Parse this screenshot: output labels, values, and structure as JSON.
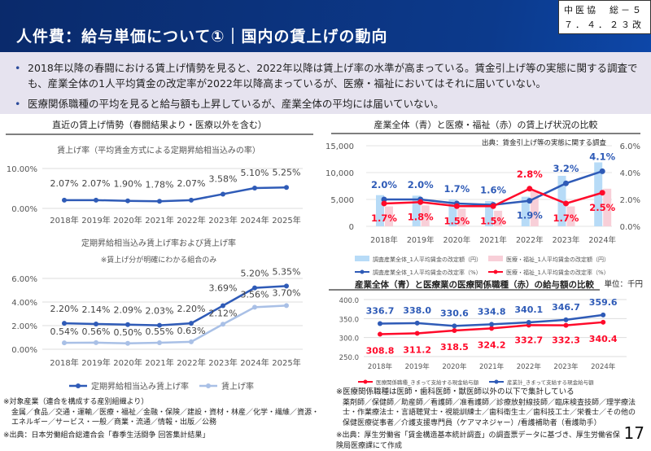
{
  "header": {
    "title": "人件費：給与単価について①｜国内の賃上げの動向",
    "doc_id_line1": "中医協　総－５",
    "doc_id_line2": "７．４．２３改"
  },
  "bullets": [
    "2018年以降の春闘における賃上げ情勢を見ると、2022年以降は賃上げ率の水準が高まっている。賃金引上げ等の実態に関する調査でも、産業全体の1人平均賃金の改定率が2022年以降高まっているが、医療・福祉においてはそれに届いていない。",
    "医療関係職種の平均を見ると給与額も上昇しているが、産業全体の平均には届いていない。"
  ],
  "left_section_title": "直近の賃上げ情勢（春闘結果より・医療以外を含む）",
  "right_section_title": "産業全体（青）と医療・福祉（赤）の賃上げ状況の比較",
  "chart_data": [
    {
      "type": "line",
      "title": "賃上げ率（平均賃金方式による定期昇給相当込みの率）",
      "categories": [
        "2018年",
        "2019年",
        "2020年",
        "2021年",
        "2022年",
        "2023年",
        "2024年",
        "2025年"
      ],
      "series": [
        {
          "values": [
            2.07,
            2.07,
            1.9,
            1.78,
            2.07,
            3.58,
            5.1,
            5.25
          ],
          "labels": [
            "2.07%",
            "2.07%",
            "1.90%",
            "1.78%",
            "2.07%",
            "3.58%",
            "5.10%",
            "5.25%"
          ],
          "color": "#2f5bb7"
        }
      ],
      "ylim": [
        0,
        10
      ],
      "yticks": [
        "0.00%",
        "10.00%"
      ],
      "grid": true
    },
    {
      "type": "line",
      "title": "定期昇給相当込み賃上げ率および賃上げ率",
      "subtitle": "※賃上げ分が明確にわかる組合のみ",
      "categories": [
        "2018年",
        "2019年",
        "2020年",
        "2021年",
        "2022年",
        "2023年",
        "2024年",
        "2025年"
      ],
      "series": [
        {
          "name": "定期昇給相当込み賃上げ率",
          "values": [
            2.2,
            2.14,
            2.09,
            2.03,
            2.2,
            3.69,
            5.2,
            5.35
          ],
          "labels": [
            "2.20%",
            "2.14%",
            "2.09%",
            "2.03%",
            "2.20%",
            "3.69%",
            "5.20%",
            "5.35%"
          ],
          "color": "#2f5bb7"
        },
        {
          "name": "賃上げ率",
          "values": [
            0.54,
            0.56,
            0.5,
            0.55,
            0.63,
            2.12,
            3.56,
            3.7
          ],
          "labels": [
            "0.54%",
            "0.56%",
            "0.50%",
            "0.55%",
            "0.63%",
            "2.12%",
            "3.56%",
            "3.70%"
          ],
          "color": "#a9c0e6"
        }
      ],
      "ylim": [
        0,
        6
      ],
      "yticks": [
        "0.00%",
        "2.00%",
        "4.00%",
        "6.00%"
      ],
      "grid": true,
      "legend": "bottom"
    },
    {
      "type": "bar+line",
      "source": "出典：賃金引上げ等の実態に関する調査",
      "categories": [
        "2018年",
        "2019年",
        "2020年",
        "2021年",
        "2022年",
        "2023年",
        "2024年"
      ],
      "bars": [
        {
          "name": "調査産業全体_1人平均賃金の改定額（円）",
          "values": [
            5800,
            5700,
            5000,
            4700,
            5500,
            9400,
            11900
          ],
          "color": "#b7dbf7"
        },
        {
          "name": "医療・福祉_1人平均賃金の改定額（円）",
          "values": [
            3700,
            3900,
            3300,
            2900,
            6600,
            3700,
            7000
          ],
          "color": "#f8cfd8"
        }
      ],
      "lines": [
        {
          "name": "調査産業全体_1人平均賃金の改定率（%）",
          "values": [
            2.0,
            2.0,
            1.7,
            1.6,
            1.9,
            3.2,
            4.1
          ],
          "labels": [
            "2.0%",
            "2.0%",
            "1.7%",
            "1.6%",
            "1.9%",
            "3.2%",
            "4.1%"
          ],
          "color": "#2f5bb7"
        },
        {
          "name": "医療・福祉_1人平均賃金の改定率（%）",
          "values": [
            1.7,
            1.8,
            1.5,
            1.5,
            2.8,
            1.7,
            2.5
          ],
          "labels": [
            "1.7%",
            "1.8%",
            "1.5%",
            "1.5%",
            "2.8%",
            "1.7%",
            "2.5%"
          ],
          "color": "#ff0a2a"
        }
      ],
      "ylim_left": [
        0,
        15000
      ],
      "yticks_left": [
        "0",
        "5,000",
        "10,000",
        "15,000"
      ],
      "ylim_right": [
        0,
        6
      ],
      "yticks_right": [
        "0.0%",
        "2.0%",
        "4.0%",
        "6.0%"
      ],
      "grid": true,
      "legend": "bottom"
    },
    {
      "type": "line",
      "title": "産業全体（青）と医療業の医療関係職種（赤）の給与額の比較",
      "unit": "単位：千円",
      "categories": [
        "2018年",
        "2019年",
        "2020年",
        "2021年",
        "2022年",
        "2023年",
        "2024年"
      ],
      "series": [
        {
          "name": "医療関係職種_きまって支給する現金給与額",
          "values": [
            308.8,
            311.2,
            318.5,
            324.2,
            332.7,
            332.3,
            340.4
          ],
          "labels": [
            "308.8",
            "311.2",
            "318.5",
            "324.2",
            "332.7",
            "332.3",
            "340.4"
          ],
          "color": "#ff0a2a"
        },
        {
          "name": "産業計_きまって支給する現金給与額",
          "values": [
            336.7,
            338.0,
            330.6,
            334.8,
            340.1,
            346.7,
            359.6
          ],
          "labels": [
            "336.7",
            "338.0",
            "330.6",
            "334.8",
            "340.1",
            "346.7",
            "359.6"
          ],
          "color": "#2f5bb7"
        }
      ],
      "ylim": [
        250,
        400
      ],
      "yticks": [
        "250.0",
        "300.0",
        "350.0",
        "400.0"
      ],
      "grid": true,
      "legend": "bottom"
    }
  ],
  "notes_left": {
    "target_title": "※対象産業（連合を構成する産別組織より）",
    "target_list": "金属／食品／交通・運輸／医療・福祉／金融・保険／建設・資材・林産／化学・繊維／資源・エネルギー／サービス・一般／商業・流通／情報・出版／公務",
    "source": "※出典：日本労働組合総連合会「春季生活闘争 回答集計結果」"
  },
  "notes_right": {
    "occupation_title": "※医療関係職種は医師・歯科医師・獣医師以外の以下で集計している",
    "occupation_list": "薬剤師／保健師／助産師／看護師／准看護師／診療放射線技師／臨床検査技師／理学療法士・作業療法士・言語聴覚士・視能訓練士／歯科衛生士／歯科技工士／栄養士／その他の保健医療従事者／介護支援専門員（ケアマネジャー）/看護補助者（看護助手）",
    "source": "※出典：厚生労働省「賃金構造基本統計調査」の調査票データに基づき、厚生労働省保険局医療課にて作成"
  },
  "page_number": "17"
}
